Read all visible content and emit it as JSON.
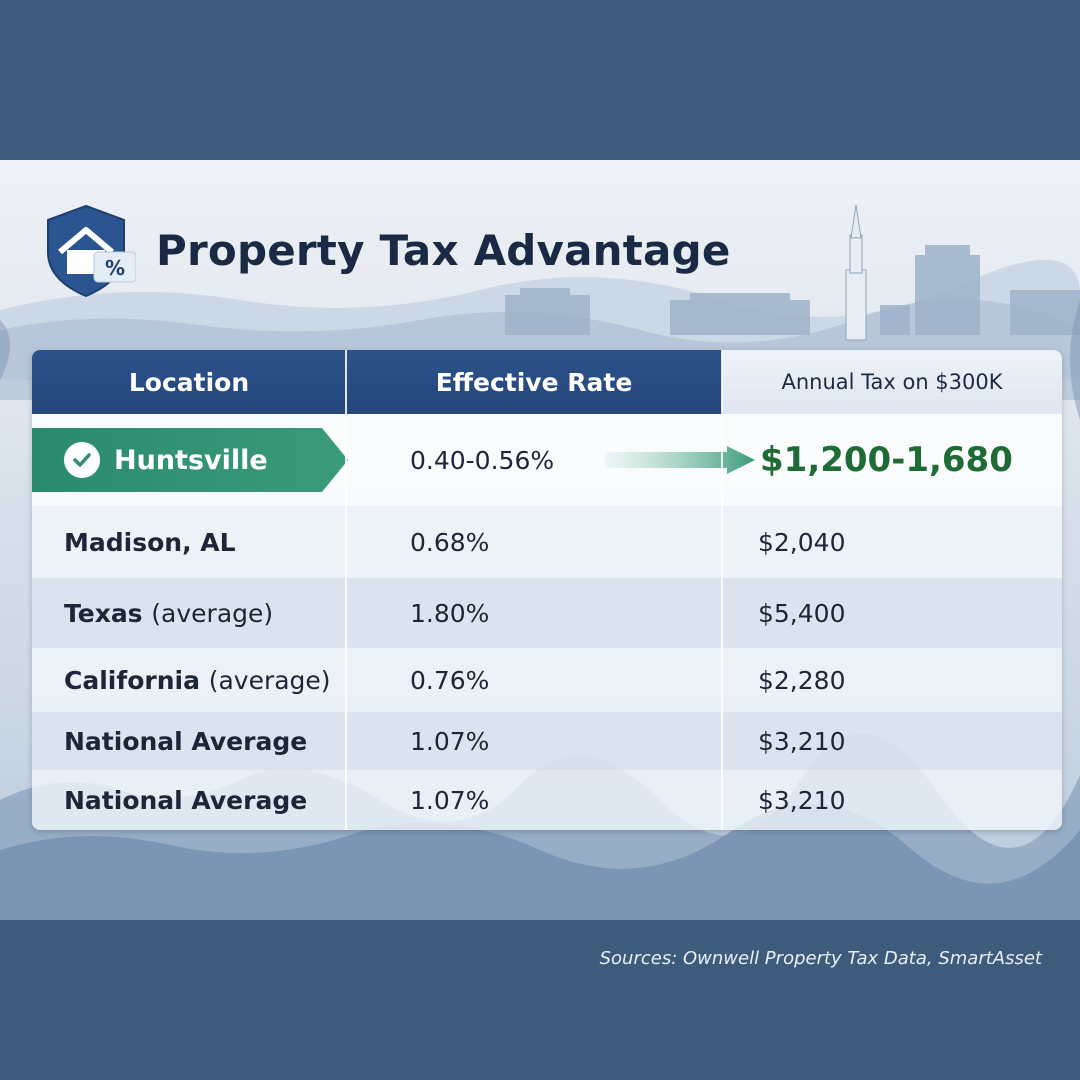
{
  "header": {
    "title": "Property Tax Advantage"
  },
  "table": {
    "columns": [
      "Location",
      "Effective Rate",
      "Annual Tax on $300K"
    ],
    "highlight": {
      "location": "Huntsville",
      "rate": "0.40-0.56%",
      "tax": "$1,200-1,680"
    },
    "rows": [
      {
        "location": "Madison, AL",
        "paren": "",
        "rate": "0.68%",
        "tax": "$2,040"
      },
      {
        "location": "Texas",
        "paren": "(average)",
        "rate": "1.80%",
        "tax": "$5,400"
      },
      {
        "location": "California",
        "paren": "(average)",
        "rate": "0.76%",
        "tax": "$2,280"
      },
      {
        "location": "National Average",
        "paren": "",
        "rate": "1.07%",
        "tax": "$3,210"
      },
      {
        "location": "National Average",
        "paren": "",
        "rate": "1.07%",
        "tax": "$3,210"
      }
    ]
  },
  "footer": {
    "source": "Sources: Ownwell Property Tax Data, SmartAsset"
  },
  "icons": {
    "logo": "house-shield-percent-icon",
    "check": "check-circle-icon",
    "arrow": "arrow-right-icon"
  },
  "colors": {
    "header_blue": "#24477b",
    "highlight_green": "#2a8a6e",
    "amount_green": "#1e6b35",
    "frame": "#3d5b7a"
  }
}
